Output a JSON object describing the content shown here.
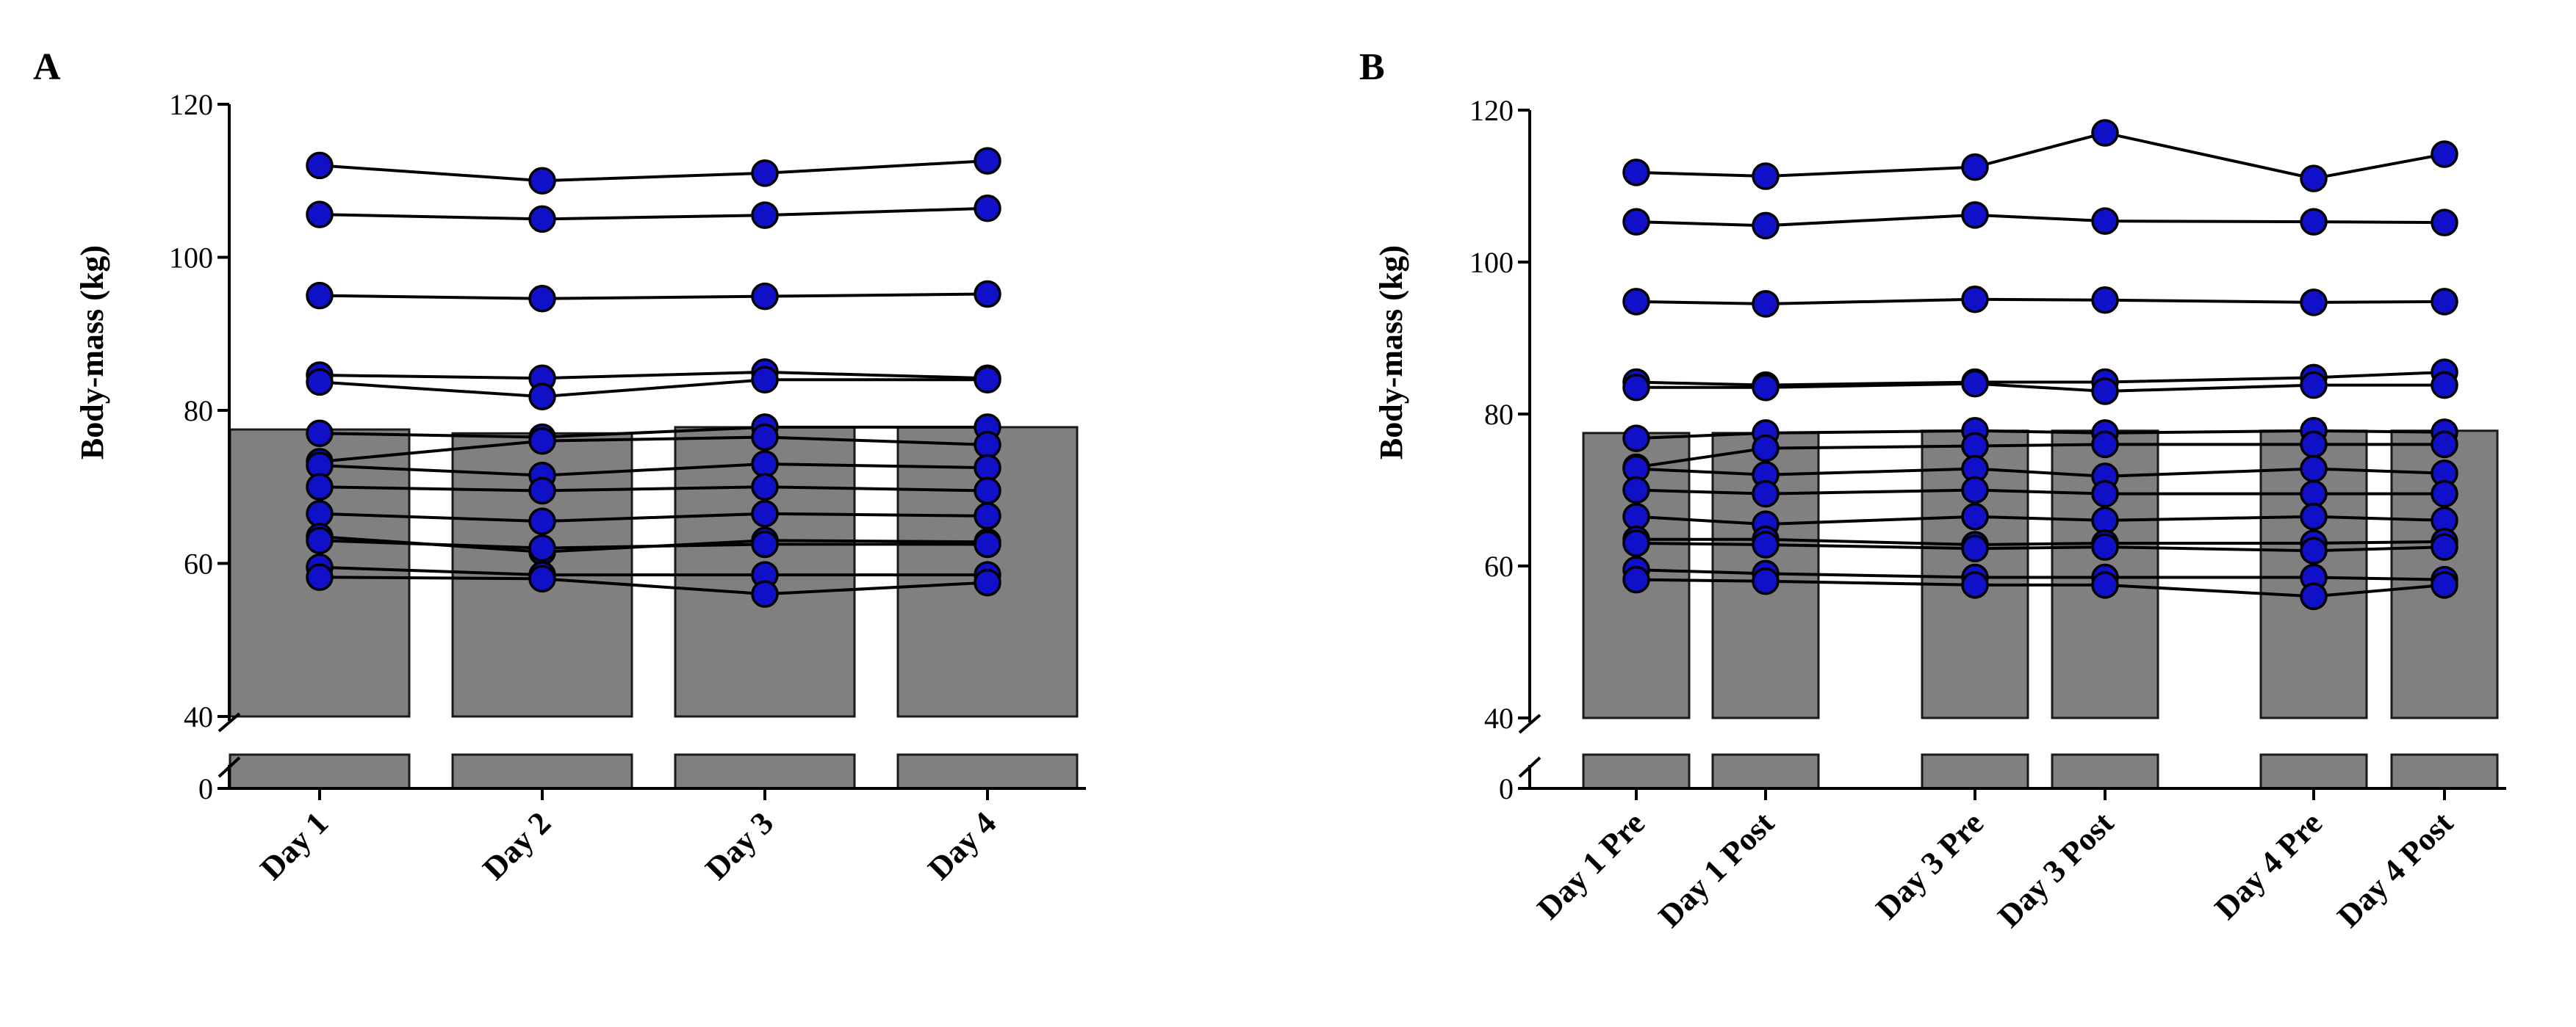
{
  "colors": {
    "bar": "#808080",
    "bar_stroke": "#1a1a1a",
    "marker": "#1010c8",
    "marker_stroke": "#000000",
    "line": "#000000",
    "axis": "#000000"
  },
  "chart_data": [
    {
      "panel": "A",
      "type": "bar",
      "ylabel": "Body-mass (kg)",
      "xlabel": "",
      "ylim": [
        0,
        120
      ],
      "axis_break": [
        0,
        40
      ],
      "yticks": [
        0,
        40,
        60,
        80,
        100,
        120
      ],
      "ytick_labels": [
        "0",
        "40",
        "60",
        "80",
        "100",
        "120"
      ],
      "categories": [
        "Day 1",
        "Day 2",
        "Day 3",
        "Day 4"
      ],
      "bar_values": [
        77.5,
        77,
        77.8,
        77.8
      ],
      "subjects": [
        [
          112,
          110,
          111,
          112.6
        ],
        [
          105.6,
          105,
          105.5,
          106.4
        ],
        [
          95,
          94.6,
          94.9,
          95.2
        ],
        [
          84.6,
          84.2,
          85,
          84.2
        ],
        [
          83.7,
          81.8,
          84,
          84
        ],
        [
          77,
          76.5,
          77.8,
          77.8
        ],
        [
          73.3,
          76,
          76.5,
          75.5
        ],
        [
          72.8,
          71.5,
          73,
          72.5
        ],
        [
          70,
          69.5,
          70,
          69.5
        ],
        [
          66.5,
          65.5,
          66.5,
          66.2
        ],
        [
          63.5,
          61.5,
          63,
          62.8
        ],
        [
          63,
          62,
          62.5,
          62.5
        ],
        [
          59.5,
          58.5,
          58.5,
          58.5
        ],
        [
          58.2,
          58,
          56,
          57.5
        ]
      ]
    },
    {
      "panel": "B",
      "type": "bar",
      "ylabel": "Body-mass (kg)",
      "xlabel": "",
      "ylim": [
        0,
        120
      ],
      "axis_break": [
        0,
        40
      ],
      "yticks": [
        0,
        40,
        60,
        80,
        100,
        120
      ],
      "ytick_labels": [
        "0",
        "40",
        "60",
        "80",
        "100",
        "120"
      ],
      "categories": [
        "Day 1 Pre",
        "Day 1 Post",
        "Day 3 Pre",
        "Day 3 Post",
        "Day 4 Pre",
        "Day 4 Post"
      ],
      "bar_values": [
        77.5,
        77.5,
        77.8,
        77.8,
        77.8,
        77.8
      ],
      "subjects": [
        [
          111.8,
          111.3,
          112.5,
          117,
          111,
          114.2
        ],
        [
          105.3,
          104.8,
          106.2,
          105.4,
          105.3,
          105.2
        ],
        [
          94.8,
          94.5,
          95.1,
          95,
          94.7,
          94.8
        ],
        [
          84.2,
          83.8,
          84.2,
          84.2,
          84.8,
          85.5
        ],
        [
          83.5,
          83.5,
          84,
          83,
          83.8,
          83.8
        ],
        [
          76.8,
          77.5,
          77.8,
          77.5,
          77.8,
          77.6
        ],
        [
          73,
          75.5,
          75.8,
          76,
          76,
          76
        ],
        [
          72.8,
          72,
          72.8,
          71.8,
          72.8,
          72.2
        ],
        [
          70,
          69.5,
          70,
          69.5,
          69.5,
          69.5
        ],
        [
          66.5,
          65.5,
          66.5,
          66,
          66.5,
          66
        ],
        [
          63.5,
          63.5,
          62.8,
          63,
          63,
          63.2
        ],
        [
          63,
          62.8,
          62.3,
          62.5,
          62,
          62.5
        ],
        [
          59.5,
          59,
          58.5,
          58.5,
          58.5,
          58.2
        ],
        [
          58.2,
          58,
          57.5,
          57.5,
          56,
          57.5
        ]
      ]
    }
  ]
}
